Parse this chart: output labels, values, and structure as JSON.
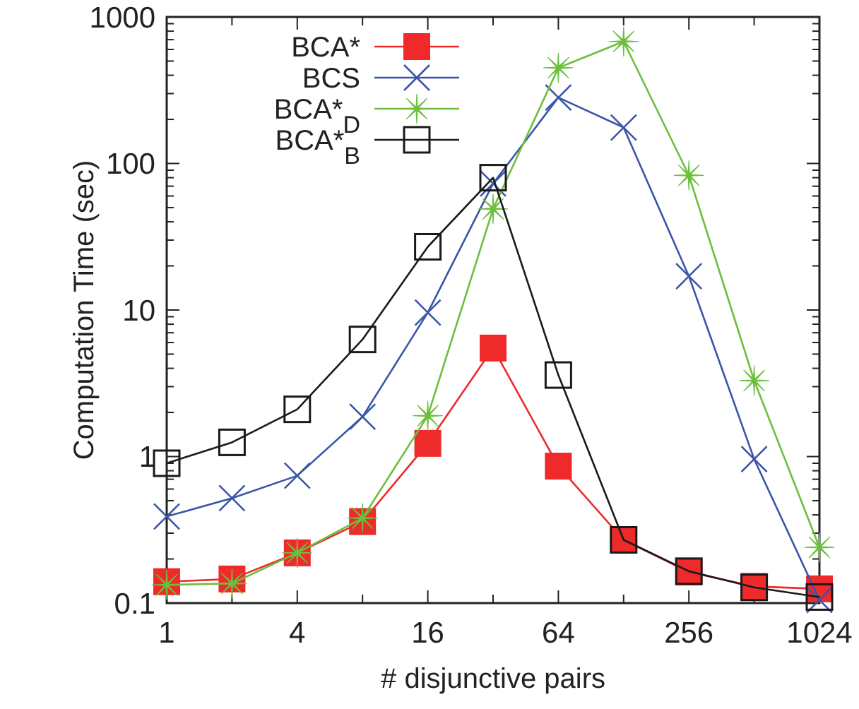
{
  "chart_data": {
    "type": "line",
    "xlabel": "# disjunctive pairs",
    "ylabel": "Computation Time (sec)",
    "log": "xy",
    "x": [
      1,
      2,
      4,
      8,
      16,
      32,
      64,
      128,
      256,
      512,
      1024
    ],
    "xlim": [
      1,
      1024
    ],
    "xticks": [
      1,
      {
        "value": 2,
        "label": null
      },
      4,
      {
        "value": 8,
        "label": null
      },
      16,
      {
        "value": 32,
        "label": null
      },
      64,
      {
        "value": 128,
        "label": null
      },
      256,
      {
        "value": 512,
        "label": null
      },
      1024
    ],
    "ylim": [
      0.1,
      1000
    ],
    "yticks": [
      0.1,
      {
        "value": 0.2,
        "label": null
      },
      {
        "value": 0.3,
        "label": null
      },
      {
        "value": 0.4,
        "label": null
      },
      {
        "value": 0.5,
        "label": null
      },
      {
        "value": 0.6,
        "label": null
      },
      {
        "value": 0.7,
        "label": null
      },
      {
        "value": 0.8,
        "label": null
      },
      {
        "value": 0.9,
        "label": null
      },
      1,
      {
        "value": 2,
        "label": null
      },
      {
        "value": 3,
        "label": null
      },
      {
        "value": 4,
        "label": null
      },
      {
        "value": 5,
        "label": null
      },
      {
        "value": 6,
        "label": null
      },
      {
        "value": 7,
        "label": null
      },
      {
        "value": 8,
        "label": null
      },
      {
        "value": 9,
        "label": null
      },
      10,
      {
        "value": 20,
        "label": null
      },
      {
        "value": 30,
        "label": null
      },
      {
        "value": 40,
        "label": null
      },
      {
        "value": 50,
        "label": null
      },
      {
        "value": 60,
        "label": null
      },
      {
        "value": 70,
        "label": null
      },
      {
        "value": 80,
        "label": null
      },
      {
        "value": 90,
        "label": null
      },
      100,
      {
        "value": 200,
        "label": null
      },
      {
        "value": 300,
        "label": null
      },
      {
        "value": 400,
        "label": null
      },
      {
        "value": 500,
        "label": null
      },
      {
        "value": 600,
        "label": null
      },
      {
        "value": 700,
        "label": null
      },
      {
        "value": 800,
        "label": null
      },
      {
        "value": 900,
        "label": null
      },
      1000
    ],
    "grid": false,
    "legend": "top left",
    "line_style": "solid",
    "series": [
      {
        "name": "BCA*",
        "color": "#ee2a2a",
        "marker": "square",
        "values": [
          0.14,
          0.146,
          0.22,
          0.36,
          1.23,
          5.5,
          0.86,
          0.27,
          0.163,
          0.13,
          0.125
        ]
      },
      {
        "name": "BCS",
        "color": "#3a55a8",
        "marker": "cross",
        "values": [
          0.39,
          0.52,
          0.74,
          1.87,
          9.6,
          73,
          282,
          176,
          17,
          0.96,
          0.105
        ]
      },
      {
        "name": "BCA*$_{D}$",
        "color": "#6cbf3c",
        "marker": "star",
        "values": [
          0.133,
          0.136,
          0.22,
          0.38,
          1.9,
          49,
          450,
          680,
          83,
          3.3,
          0.24
        ]
      },
      {
        "name": "BCA*$_{B}$",
        "color": "#1a1a1a",
        "marker": "square-open",
        "values": [
          0.9,
          1.25,
          2.1,
          6.3,
          27,
          80,
          3.6,
          0.27,
          0.165,
          0.128,
          0.11
        ]
      }
    ]
  }
}
